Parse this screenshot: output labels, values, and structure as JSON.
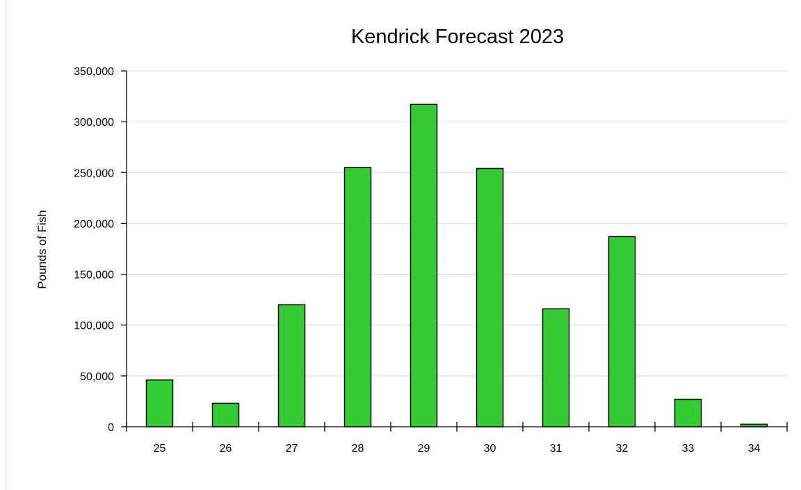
{
  "chart_data": {
    "type": "bar",
    "title": "Kendrick Forecast 2023",
    "xlabel": "",
    "ylabel": "Pounds of Fish",
    "categories": [
      "25",
      "26",
      "27",
      "28",
      "29",
      "30",
      "31",
      "32",
      "33",
      "34"
    ],
    "values": [
      46000,
      23000,
      120000,
      255000,
      317000,
      254000,
      116000,
      187000,
      27000,
      2500
    ],
    "ylim": [
      0,
      350000
    ],
    "yticks": [
      0,
      50000,
      100000,
      150000,
      200000,
      250000,
      300000,
      350000
    ],
    "ytick_labels": [
      "0",
      "50,000",
      "100,000",
      "150,000",
      "200,000",
      "250,000",
      "300,000",
      "350,000"
    ],
    "grid": true,
    "legend": "none",
    "bar_color": "#33cc33"
  }
}
